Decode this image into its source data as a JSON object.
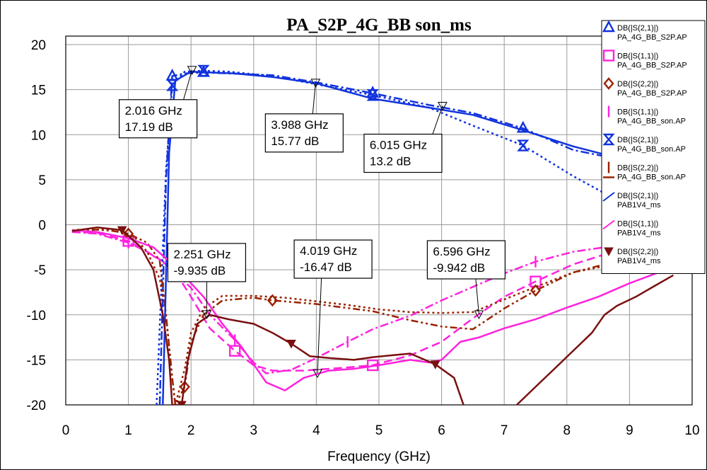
{
  "chart_data": {
    "type": "line",
    "title": "PA_S2P_4G_BB son_ms",
    "xlabel": "Frequency (GHz)",
    "ylabel": "",
    "xlim": [
      0,
      10
    ],
    "ylim": [
      -20,
      20
    ],
    "x_ticks": [
      0,
      1,
      2,
      3,
      4,
      5,
      6,
      7,
      8,
      9,
      10
    ],
    "y_ticks": [
      20,
      15,
      10,
      5,
      0,
      -5,
      -10,
      -15,
      -20
    ],
    "grid": true,
    "legend_position": "right",
    "series": [
      {
        "label_line1": "DB(|S(2,1)|)",
        "label_line2": "PA_4G_BB_S2P.AP",
        "color": "#1133dd",
        "style": "dash-dot",
        "marker": "triangle-up",
        "points": [
          [
            1.5,
            -20
          ],
          [
            1.6,
            5
          ],
          [
            1.7,
            16.5
          ],
          [
            1.9,
            16.8
          ],
          [
            2.2,
            16.9
          ],
          [
            2.6,
            16.8
          ],
          [
            3.3,
            16.6
          ],
          [
            4,
            15.8
          ],
          [
            4.9,
            14.6
          ],
          [
            5.8,
            13.3
          ],
          [
            6.5,
            12.4
          ],
          [
            7.3,
            10.7
          ],
          [
            8.1,
            8.3
          ],
          [
            8.6,
            7.6
          ]
        ]
      },
      {
        "label_line1": "DB(|S(1,1)|)",
        "label_line2": "PA_4G_BB_S2P.AP",
        "color": "#ff22dd",
        "style": "dash",
        "marker": "square",
        "points": [
          [
            0.1,
            -0.8
          ],
          [
            0.5,
            -0.9
          ],
          [
            1,
            -1.8
          ],
          [
            1.3,
            -3
          ],
          [
            1.7,
            -4.7
          ],
          [
            2,
            -8
          ],
          [
            2.3,
            -11.5
          ],
          [
            2.7,
            -14
          ],
          [
            3,
            -15.6
          ],
          [
            3.3,
            -16.2
          ],
          [
            3.8,
            -16.2
          ],
          [
            4.4,
            -15.9
          ],
          [
            4.9,
            -15.6
          ],
          [
            5.5,
            -14.5
          ],
          [
            6,
            -13
          ],
          [
            6.5,
            -10.4
          ],
          [
            7,
            -8
          ],
          [
            7.5,
            -6.3
          ],
          [
            8.1,
            -4.4
          ],
          [
            8.6,
            -3.3
          ]
        ]
      },
      {
        "label_line1": "DB(|S(2,2)|)",
        "label_line2": "PA_4G_BB_S2P.AP",
        "color": "#992200",
        "style": "dash-dot-dot",
        "marker": "diamond",
        "points": [
          [
            0.1,
            -0.7
          ],
          [
            0.6,
            -0.5
          ],
          [
            1,
            -1
          ],
          [
            1.3,
            -2
          ],
          [
            1.5,
            -4
          ],
          [
            1.6,
            -10
          ],
          [
            1.7,
            -17
          ],
          [
            1.75,
            -20
          ],
          [
            1.9,
            -18
          ],
          [
            2,
            -13
          ],
          [
            2.2,
            -10
          ],
          [
            2.5,
            -8.4
          ],
          [
            3,
            -8.1
          ],
          [
            3.3,
            -8.4
          ],
          [
            4,
            -8.8
          ],
          [
            4.9,
            -9.6
          ],
          [
            5.5,
            -10.6
          ],
          [
            6,
            -11.3
          ],
          [
            6.5,
            -11.6
          ],
          [
            7,
            -9.3
          ],
          [
            7.5,
            -7.3
          ],
          [
            8.1,
            -5.3
          ],
          [
            8.6,
            -4.4
          ]
        ]
      },
      {
        "label_line1": "DB(|S(1,1)|)",
        "label_line2": "PA_4G_BB_son.AP",
        "color": "#ff22dd",
        "style": "dash-dot",
        "marker": "bar",
        "points": [
          [
            0.1,
            -0.8
          ],
          [
            0.5,
            -1
          ],
          [
            1,
            -2
          ],
          [
            1.3,
            -3
          ],
          [
            1.6,
            -4.4
          ],
          [
            2,
            -7
          ],
          [
            2.3,
            -10
          ],
          [
            2.7,
            -12.8
          ],
          [
            3,
            -15.3
          ],
          [
            3.2,
            -16.5
          ],
          [
            3.6,
            -16.1
          ],
          [
            4,
            -14.8
          ],
          [
            4.5,
            -13
          ],
          [
            4.9,
            -11.6
          ],
          [
            5.5,
            -10.1
          ],
          [
            6,
            -8.4
          ],
          [
            6.5,
            -6.9
          ],
          [
            7,
            -5.4
          ],
          [
            7.5,
            -4.1
          ],
          [
            8.1,
            -3
          ],
          [
            8.6,
            -2.5
          ]
        ]
      },
      {
        "label_line1": "DB(|S(2,1)|)",
        "label_line2": "PA_4G_BB_son.AP",
        "color": "#1133dd",
        "style": "dot",
        "marker": "hourglass",
        "points": [
          [
            1.45,
            -20
          ],
          [
            1.6,
            6
          ],
          [
            1.7,
            15.5
          ],
          [
            1.9,
            17
          ],
          [
            2.2,
            17.1
          ],
          [
            2.6,
            17
          ],
          [
            3.3,
            16.5
          ],
          [
            4,
            15.6
          ],
          [
            4.9,
            14.4
          ],
          [
            5.8,
            13
          ],
          [
            6.5,
            11
          ],
          [
            7.3,
            8.8
          ],
          [
            8.1,
            5.4
          ],
          [
            8.6,
            3.5
          ]
        ]
      },
      {
        "label_line1": "DB(|S(2,2)|)",
        "label_line2": "PA_4G_BB_son.AP",
        "color": "#992200",
        "style": "dot",
        "marker": "none",
        "points": [
          [
            0.1,
            -0.6
          ],
          [
            0.4,
            -0.5
          ],
          [
            0.8,
            -0.7
          ],
          [
            1.1,
            -1.4
          ],
          [
            1.3,
            -3
          ],
          [
            1.5,
            -6
          ],
          [
            1.6,
            -10
          ],
          [
            1.7,
            -17
          ],
          [
            1.75,
            -20
          ],
          [
            1.9,
            -16
          ],
          [
            2,
            -12
          ],
          [
            2.2,
            -9.3
          ],
          [
            2.5,
            -7.9
          ],
          [
            3,
            -7.9
          ],
          [
            3.5,
            -8.1
          ],
          [
            4,
            -8.5
          ],
          [
            4.5,
            -8.9
          ],
          [
            5,
            -9.4
          ],
          [
            5.5,
            -9.7
          ],
          [
            6,
            -9.8
          ],
          [
            6.5,
            -9.7
          ],
          [
            7,
            -8.3
          ],
          [
            7.5,
            -6.9
          ],
          [
            8.1,
            -5.3
          ],
          [
            8.6,
            -4.6
          ]
        ]
      },
      {
        "label_line1": "DB(|S(2,1)|)",
        "label_line2": "PAB1V4_ms",
        "color": "#1133dd",
        "style": "solid",
        "marker": "arrow",
        "points": [
          [
            1.55,
            -20
          ],
          [
            1.65,
            8
          ],
          [
            1.75,
            16
          ],
          [
            2,
            17
          ],
          [
            2.3,
            16.9
          ],
          [
            2.7,
            16.8
          ],
          [
            3.3,
            16.4
          ],
          [
            4,
            15.7
          ],
          [
            4.9,
            14
          ],
          [
            5.8,
            13
          ],
          [
            6.5,
            12.2
          ],
          [
            7.3,
            10.5
          ],
          [
            8.1,
            8.7
          ],
          [
            8.6,
            7.8
          ],
          [
            9,
            8
          ]
        ]
      },
      {
        "label_line1": "DB(|S(1,1)|)",
        "label_line2": "PAB1V4_ms",
        "color": "#ff22dd",
        "style": "solid",
        "marker": "arrow",
        "points": [
          [
            0.1,
            -0.6
          ],
          [
            0.5,
            -0.8
          ],
          [
            1,
            -1.5
          ],
          [
            1.4,
            -2.5
          ],
          [
            1.8,
            -5
          ],
          [
            2.2,
            -8
          ],
          [
            2.5,
            -11
          ],
          [
            2.8,
            -13.5
          ],
          [
            3,
            -15.5
          ],
          [
            3.2,
            -17.5
          ],
          [
            3.5,
            -18.4
          ],
          [
            3.8,
            -17
          ],
          [
            4.2,
            -16.2
          ],
          [
            4.6,
            -16
          ],
          [
            5,
            -15.6
          ],
          [
            5.5,
            -15
          ],
          [
            5.8,
            -15.3
          ],
          [
            6,
            -15
          ],
          [
            6.3,
            -13
          ],
          [
            6.6,
            -12.5
          ],
          [
            7,
            -11.5
          ],
          [
            7.5,
            -10.5
          ],
          [
            8,
            -9.2
          ],
          [
            8.5,
            -8
          ],
          [
            9,
            -6.5
          ],
          [
            9.5,
            -5.2
          ]
        ]
      },
      {
        "label_line1": "DB(|S(2,2)|)",
        "label_line2": "PAB1V4_ms",
        "color": "#7a1010",
        "style": "solid",
        "marker": "triangle-down",
        "points": [
          [
            0.1,
            -0.7
          ],
          [
            0.5,
            -0.3
          ],
          [
            0.9,
            -0.6
          ],
          [
            1.2,
            -2.5
          ],
          [
            1.4,
            -5
          ],
          [
            1.55,
            -10
          ],
          [
            1.65,
            -15
          ],
          [
            1.7,
            -20
          ],
          [
            1.85,
            -20
          ],
          [
            1.95,
            -15
          ],
          [
            2.1,
            -11
          ],
          [
            2.3,
            -10
          ],
          [
            2.6,
            -10.5
          ],
          [
            3,
            -11
          ],
          [
            3.3,
            -12
          ],
          [
            3.6,
            -13.2
          ],
          [
            3.9,
            -14.6
          ],
          [
            4.2,
            -14.8
          ],
          [
            4.6,
            -15
          ],
          [
            4.9,
            -14.7
          ],
          [
            5.2,
            -14.5
          ],
          [
            5.5,
            -14.3
          ],
          [
            5.9,
            -15.5
          ],
          [
            6.2,
            -17
          ],
          [
            6.35,
            -20
          ]
        ]
      },
      {
        "label_line1": "",
        "label_line2": "",
        "color": "#7a1010",
        "style": "solid",
        "marker": "none",
        "points": [
          [
            7.2,
            -20
          ],
          [
            7.5,
            -18
          ],
          [
            7.8,
            -16
          ],
          [
            8.1,
            -14
          ],
          [
            8.4,
            -12
          ],
          [
            8.6,
            -10
          ],
          [
            8.8,
            -9
          ],
          [
            9.1,
            -8
          ],
          [
            9.4,
            -6.8
          ],
          [
            9.7,
            -5.6
          ]
        ]
      }
    ],
    "markers": [
      {
        "x": 2.016,
        "y": 17.19,
        "text_freq": "2.016 GHz",
        "text_val": "17.19 dB"
      },
      {
        "x": 3.988,
        "y": 15.77,
        "text_freq": "3.988 GHz",
        "text_val": "15.77 dB"
      },
      {
        "x": 6.015,
        "y": 13.2,
        "text_freq": "6.015 GHz",
        "text_val": "13.2 dB"
      },
      {
        "x": 2.251,
        "y": -9.935,
        "text_freq": "2.251 GHz",
        "text_val": "-9.935 dB"
      },
      {
        "x": 4.019,
        "y": -16.47,
        "text_freq": "4.019 GHz",
        "text_val": "-16.47 dB"
      },
      {
        "x": 6.596,
        "y": -9.942,
        "text_freq": "6.596 GHz",
        "text_val": "-9.942 dB"
      }
    ]
  }
}
